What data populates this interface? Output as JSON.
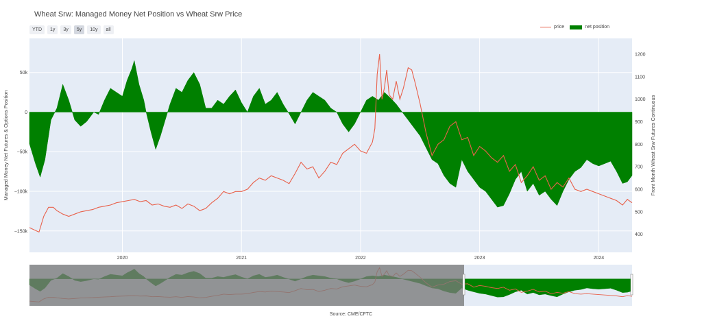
{
  "title": "Wheat Srw: Managed Money Net Position vs Wheat Srw Price",
  "range_buttons": [
    "YTD",
    "1y",
    "3y",
    "5y",
    "10y",
    "all"
  ],
  "range_active": "5y",
  "legend": {
    "price": "price",
    "net": "net position"
  },
  "source": "Source: CME/CFTC",
  "colors": {
    "price": "#e8614b",
    "net": "#008000",
    "plot_bg": "#e5ecf6"
  },
  "chart_data": {
    "type": "area",
    "ylabel_left": "Managed Money Net Futures & Options Position",
    "ylabel_right": "Front Month Wheat Srw Futures Continuous",
    "xlim": [
      2019.22,
      2024.28
    ],
    "ylim_left": [
      -177000,
      93000
    ],
    "ylim_right": [
      320,
      1270
    ],
    "x_ticks": [
      {
        "v": 2020,
        "label": "2020"
      },
      {
        "v": 2021,
        "label": "2021"
      },
      {
        "v": 2022,
        "label": "2022"
      },
      {
        "v": 2023,
        "label": "2023"
      },
      {
        "v": 2024,
        "label": "2024"
      }
    ],
    "y_left_ticks": [
      {
        "v": 50000,
        "label": "50k"
      },
      {
        "v": 0,
        "label": "0"
      },
      {
        "v": -50000,
        "label": "−50k"
      },
      {
        "v": -100000,
        "label": "−100k"
      },
      {
        "v": -150000,
        "label": "−150k"
      }
    ],
    "y_right_ticks": [
      {
        "v": 1200,
        "label": "1200"
      },
      {
        "v": 1100,
        "label": "1100"
      },
      {
        "v": 1000,
        "label": "1000"
      },
      {
        "v": 900,
        "label": "900"
      },
      {
        "v": 800,
        "label": "800"
      },
      {
        "v": 700,
        "label": "700"
      },
      {
        "v": 600,
        "label": "600"
      },
      {
        "v": 500,
        "label": "500"
      },
      {
        "v": 400,
        "label": "400"
      }
    ],
    "series": [
      {
        "name": "net position",
        "x": [
          2019.22,
          2019.27,
          2019.31,
          2019.35,
          2019.4,
          2019.45,
          2019.5,
          2019.55,
          2019.6,
          2019.65,
          2019.7,
          2019.76,
          2019.8,
          2019.85,
          2019.9,
          2019.95,
          2020.0,
          2020.04,
          2020.08,
          2020.1,
          2020.14,
          2020.18,
          2020.2,
          2020.24,
          2020.28,
          2020.32,
          2020.36,
          2020.4,
          2020.45,
          2020.5,
          2020.55,
          2020.6,
          2020.65,
          2020.7,
          2020.75,
          2020.8,
          2020.85,
          2020.9,
          2020.95,
          2021.0,
          2021.05,
          2021.1,
          2021.15,
          2021.2,
          2021.25,
          2021.3,
          2021.35,
          2021.4,
          2021.45,
          2021.5,
          2021.55,
          2021.6,
          2021.65,
          2021.7,
          2021.75,
          2021.8,
          2021.85,
          2021.9,
          2021.95,
          2022.0,
          2022.05,
          2022.1,
          2022.15,
          2022.2,
          2022.25,
          2022.3,
          2022.35,
          2022.4,
          2022.45,
          2022.5,
          2022.55,
          2022.6,
          2022.65,
          2022.7,
          2022.75,
          2022.8,
          2022.85,
          2022.9,
          2022.95,
          2023.0,
          2023.05,
          2023.1,
          2023.15,
          2023.2,
          2023.25,
          2023.3,
          2023.35,
          2023.4,
          2023.45,
          2023.5,
          2023.55,
          2023.6,
          2023.65,
          2023.7,
          2023.75,
          2023.8,
          2023.85,
          2023.9,
          2023.95,
          2024.0,
          2024.05,
          2024.1,
          2024.15,
          2024.2,
          2024.24,
          2024.28
        ],
        "y": [
          -40000,
          -65000,
          -82000,
          -60000,
          -10000,
          5000,
          35000,
          15000,
          -10000,
          -18000,
          -12000,
          0,
          -3000,
          15000,
          30000,
          25000,
          20000,
          40000,
          55000,
          65000,
          35000,
          15000,
          0,
          -25000,
          -47000,
          -30000,
          -10000,
          10000,
          30000,
          25000,
          40000,
          50000,
          35000,
          5000,
          5000,
          15000,
          10000,
          20000,
          28000,
          12000,
          0,
          20000,
          30000,
          10000,
          15000,
          25000,
          10000,
          -2000,
          -15000,
          0,
          15000,
          25000,
          20000,
          15000,
          5000,
          0,
          -15000,
          -25000,
          -15000,
          0,
          15000,
          20000,
          15000,
          25000,
          18000,
          10000,
          0,
          -10000,
          -20000,
          -30000,
          -45000,
          -60000,
          -65000,
          -80000,
          -90000,
          -95000,
          -60000,
          -75000,
          -85000,
          -95000,
          -100000,
          -110000,
          -120000,
          -118000,
          -103000,
          -85000,
          -75000,
          -100000,
          -90000,
          -105000,
          -100000,
          -110000,
          -118000,
          -100000,
          -85000,
          -75000,
          -70000,
          -60000,
          -65000,
          -68000,
          -65000,
          -62000,
          -75000,
          -90000,
          -88000,
          -80000
        ]
      },
      {
        "name": "price",
        "x": [
          2019.22,
          2019.26,
          2019.3,
          2019.34,
          2019.38,
          2019.42,
          2019.45,
          2019.5,
          2019.55,
          2019.6,
          2019.65,
          2019.7,
          2019.75,
          2019.8,
          2019.85,
          2019.9,
          2019.95,
          2020.0,
          2020.05,
          2020.1,
          2020.15,
          2020.2,
          2020.25,
          2020.3,
          2020.35,
          2020.4,
          2020.45,
          2020.5,
          2020.55,
          2020.6,
          2020.65,
          2020.7,
          2020.75,
          2020.8,
          2020.85,
          2020.9,
          2020.95,
          2021.0,
          2021.05,
          2021.1,
          2021.15,
          2021.2,
          2021.25,
          2021.3,
          2021.35,
          2021.4,
          2021.45,
          2021.5,
          2021.55,
          2021.6,
          2021.65,
          2021.7,
          2021.75,
          2021.8,
          2021.85,
          2021.9,
          2021.95,
          2022.0,
          2022.05,
          2022.08,
          2022.1,
          2022.12,
          2022.14,
          2022.16,
          2022.18,
          2022.2,
          2022.22,
          2022.24,
          2022.27,
          2022.3,
          2022.33,
          2022.36,
          2022.4,
          2022.43,
          2022.46,
          2022.5,
          2022.55,
          2022.6,
          2022.65,
          2022.7,
          2022.75,
          2022.8,
          2022.85,
          2022.9,
          2022.95,
          2023.0,
          2023.05,
          2023.1,
          2023.15,
          2023.2,
          2023.25,
          2023.3,
          2023.35,
          2023.4,
          2023.45,
          2023.5,
          2023.55,
          2023.6,
          2023.65,
          2023.7,
          2023.75,
          2023.8,
          2023.85,
          2023.9,
          2023.95,
          2024.0,
          2024.05,
          2024.1,
          2024.15,
          2024.2,
          2024.24,
          2024.28
        ],
        "y": [
          430,
          420,
          410,
          480,
          520,
          520,
          505,
          490,
          480,
          490,
          500,
          505,
          510,
          520,
          525,
          530,
          540,
          545,
          550,
          555,
          545,
          550,
          530,
          535,
          525,
          520,
          530,
          515,
          535,
          525,
          505,
          515,
          540,
          560,
          590,
          580,
          590,
          590,
          600,
          630,
          650,
          640,
          660,
          650,
          640,
          625,
          670,
          720,
          690,
          700,
          650,
          680,
          720,
          710,
          760,
          780,
          800,
          770,
          760,
          790,
          810,
          870,
          1110,
          1200,
          1000,
          1050,
          1130,
          1020,
          1000,
          1080,
          1000,
          1050,
          1140,
          1130,
          1070,
          980,
          850,
          750,
          800,
          820,
          880,
          900,
          820,
          830,
          750,
          790,
          770,
          740,
          720,
          750,
          680,
          710,
          630,
          660,
          700,
          640,
          660,
          600,
          630,
          610,
          650,
          600,
          590,
          600,
          590,
          580,
          570,
          560,
          550,
          530,
          555,
          540
        ]
      }
    ]
  }
}
